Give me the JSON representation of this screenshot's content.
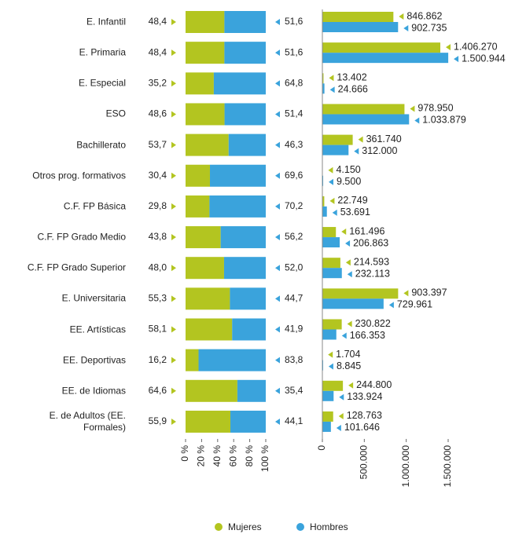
{
  "chart_data": [
    {
      "type": "bar",
      "orientation": "horizontal",
      "stacked": true,
      "categories": [
        "E. Infantil",
        "E. Primaria",
        "E. Especial",
        "ESO",
        "Bachillerato",
        "Otros prog. formativos",
        "C.F. FP Básica",
        "C.F. FP Grado Medio",
        "C.F. FP Grado Superior",
        "E. Universitaria",
        "EE. Artísticas",
        "EE. Deportivas",
        "EE. de Idiomas",
        "E. de Adultos (EE. Formales)"
      ],
      "series": [
        {
          "name": "Mujeres",
          "color": "#b3c520",
          "values": [
            48.4,
            48.4,
            35.2,
            48.6,
            53.7,
            30.4,
            29.8,
            43.8,
            48.0,
            55.3,
            58.1,
            16.2,
            64.6,
            55.9
          ],
          "value_labels": [
            "48,4",
            "48,4",
            "35,2",
            "48,6",
            "53,7",
            "30,4",
            "29,8",
            "43,8",
            "48,0",
            "55,3",
            "58,1",
            "16,2",
            "64,6",
            "55,9"
          ]
        },
        {
          "name": "Hombres",
          "color": "#3aa3dc",
          "values": [
            51.6,
            51.6,
            64.8,
            51.4,
            46.3,
            69.6,
            70.2,
            56.2,
            52.0,
            44.7,
            41.9,
            83.8,
            35.4,
            44.1
          ],
          "value_labels": [
            "51,6",
            "51,6",
            "64,8",
            "51,4",
            "46,3",
            "69,6",
            "70,2",
            "56,2",
            "52,0",
            "44,7",
            "41,9",
            "83,8",
            "35,4",
            "44,1"
          ]
        }
      ],
      "xlim": [
        0,
        100
      ],
      "xticks": [
        {
          "value": 0,
          "label": "0 %"
        },
        {
          "value": 20,
          "label": "20 %"
        },
        {
          "value": 40,
          "label": "40 %"
        },
        {
          "value": 60,
          "label": "60 %"
        },
        {
          "value": 80,
          "label": "80 %"
        },
        {
          "value": 100,
          "label": "100 %"
        }
      ],
      "legend": "bottom"
    },
    {
      "type": "bar",
      "orientation": "horizontal",
      "stacked": false,
      "series": [
        {
          "color": "#b3c520",
          "values": [
            846862,
            1406270,
            13402,
            978950,
            361740,
            4150,
            22749,
            161496,
            214593,
            903397,
            230822,
            1704,
            244800,
            128763
          ],
          "value_labels": [
            "846.862",
            "1.406.270",
            "13.402",
            "978.950",
            "361.740",
            "4.150",
            "22.749",
            "161.496",
            "214.593",
            "903.397",
            "230.822",
            "1.704",
            "244.800",
            "128.763"
          ]
        },
        {
          "color": "#3aa3dc",
          "values": [
            902735,
            1500944,
            24666,
            1033879,
            312000,
            9500,
            53691,
            206863,
            232113,
            729961,
            166353,
            8845,
            133924,
            101646
          ],
          "value_labels": [
            "902.735",
            "1.500.944",
            "24.666",
            "1.033.879",
            "312.000",
            "9.500",
            "53.691",
            "206.863",
            "232.113",
            "729.961",
            "166.353",
            "8.845",
            "133.924",
            "101.646"
          ]
        }
      ],
      "xlim": [
        0,
        1500000
      ],
      "xticks": [
        0,
        {
          "value": 500000,
          "label": "500.000"
        },
        {
          "value": 1000000,
          "label": "1.000.000"
        },
        {
          "value": 1500000,
          "label": "1.500.000"
        }
      ]
    }
  ]
}
